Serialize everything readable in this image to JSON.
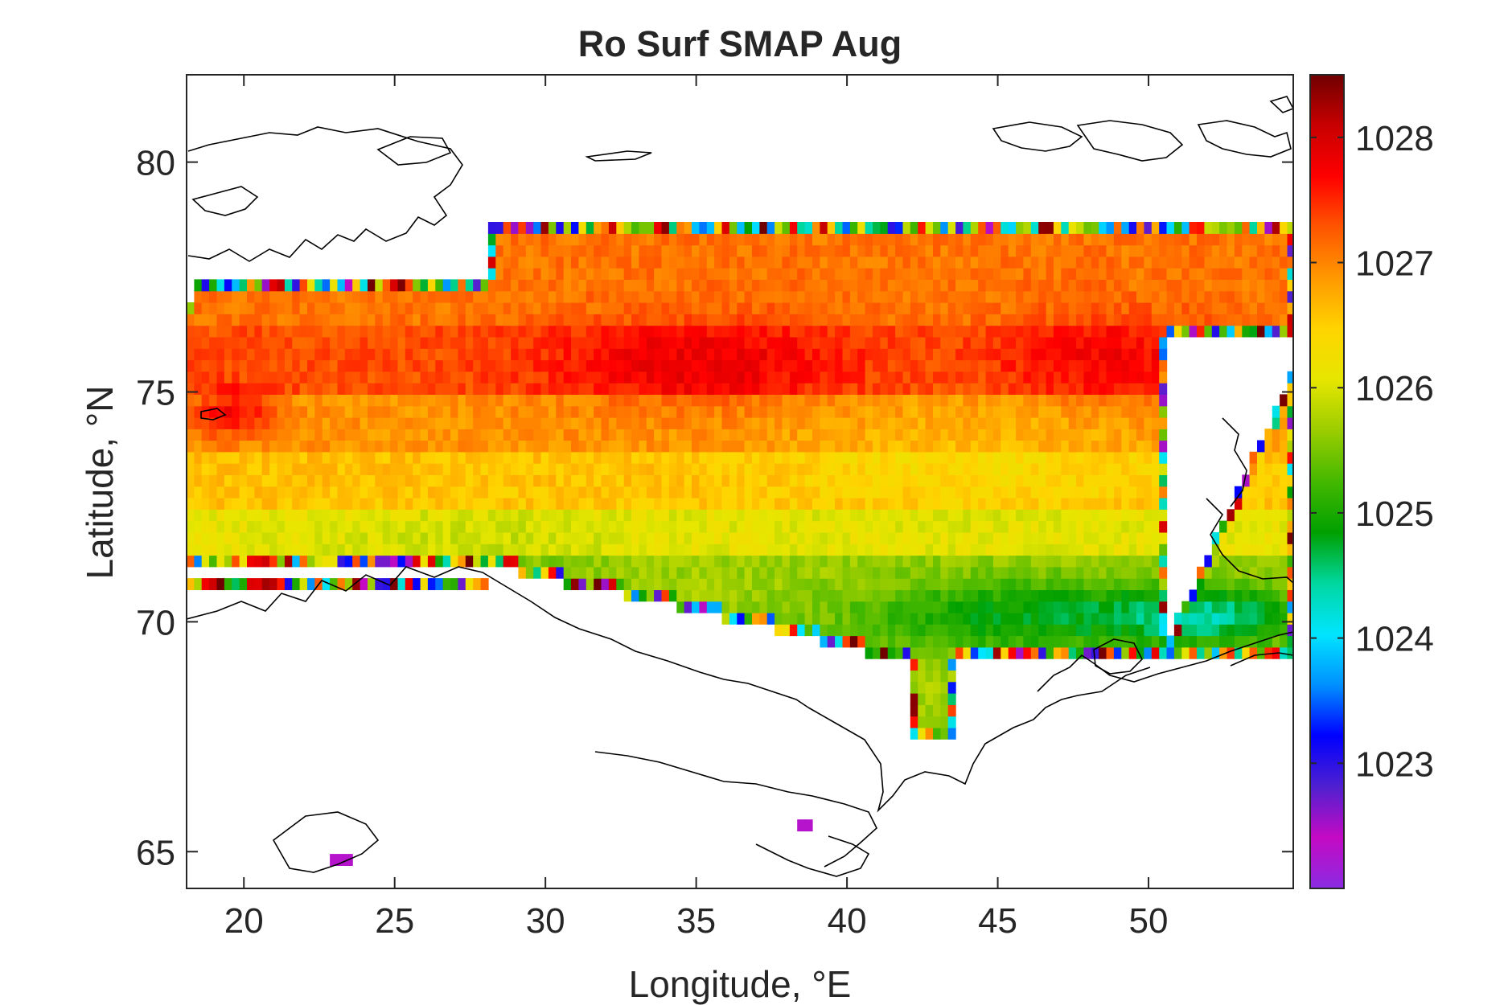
{
  "chart_data": {
    "type": "heatmap",
    "title": "Ro Surf SMAP Aug",
    "xlabel": "Longitude, °E",
    "ylabel": "Latitude, °N",
    "xlim": [
      18.1,
      54.8
    ],
    "ylim": [
      64.2,
      81.9
    ],
    "xticks": [
      20,
      25,
      30,
      35,
      40,
      45,
      50
    ],
    "xtick_labels": [
      "20",
      "25",
      "30",
      "35",
      "40",
      "45",
      "50"
    ],
    "yticks": [
      65,
      70,
      75,
      80
    ],
    "ytick_labels": [
      "65",
      "70",
      "75",
      "80"
    ],
    "colorbar": {
      "range": [
        1022.0,
        1028.5
      ],
      "ticks": [
        1023,
        1024,
        1025,
        1026,
        1027,
        1028
      ],
      "tick_labels": [
        "1023",
        "1024",
        "1025",
        "1026",
        "1027",
        "1028"
      ],
      "colormap": [
        "#8a2be2",
        "#c40ac4",
        "#5020d0",
        "#0000ff",
        "#0090ff",
        "#00e5ff",
        "#00d7a0",
        "#00a000",
        "#44b800",
        "#9acd00",
        "#e6e600",
        "#ffd400",
        "#ff9900",
        "#ff5500",
        "#ff0000",
        "#c80000",
        "#700000"
      ]
    },
    "grid": false,
    "field_description_levels": [
      {
        "name": "northern band 76-78N",
        "value": 1027.2
      },
      {
        "name": "central max 75-76N 33-38E",
        "value": 1027.8
      },
      {
        "name": "east max 75-76N 47-50E",
        "value": 1027.6
      },
      {
        "name": "band 73-74N",
        "value": 1026.8
      },
      {
        "name": "band 71.5-72.5N",
        "value": 1026.2
      },
      {
        "name": "south band 70-71N",
        "value": 1025.8
      },
      {
        "name": "Pechora coast 69-70N 43-52E",
        "value": 1025.0
      }
    ]
  }
}
